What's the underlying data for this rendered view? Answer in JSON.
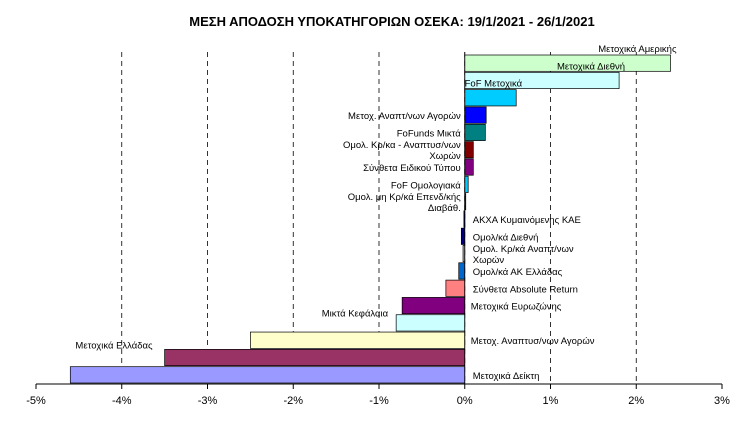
{
  "chart_data": {
    "type": "bar",
    "orientation": "horizontal",
    "title": "ΜΕΣΗ ΑΠΟΔΟΣΗ ΥΠΟΚΑΤΗΓΟΡΙΩΝ  ΟΣΕΚΑ: 19/1/2021  - 26/1/2021",
    "xlabel": "",
    "ylabel": "",
    "xlim": [
      -5,
      3
    ],
    "x_ticks": [
      "-5%",
      "-4%",
      "-3%",
      "-2%",
      "-1%",
      "0%",
      "1%",
      "2%",
      "3%"
    ],
    "grid": "vertical dashed",
    "legend": "none",
    "categories": [
      {
        "label": [
          "Μετοχικά Αμερικής"
        ],
        "value": 2.4,
        "color": "#ccffcc"
      },
      {
        "label": [
          "Μετοχικά Διεθνή"
        ],
        "value": 1.8,
        "color": "#ccffff"
      },
      {
        "label": [
          "FoF Μετοχικά"
        ],
        "value": 0.6,
        "color": "#00ccff"
      },
      {
        "label": [
          "Μετοχ.  Αναπτ/νων Αγορών"
        ],
        "value": 0.25,
        "color": "#0000ff"
      },
      {
        "label": [
          "FoFunds Μικτά"
        ],
        "value": 0.24,
        "color": "#008080"
      },
      {
        "label": [
          "Ομολ. Κρ/κα - Αναπτυσ/νων",
          "Χωρών"
        ],
        "value": 0.1,
        "color": "#800000"
      },
      {
        "label": [
          "Σύνθετα Ειδικού Τύπου"
        ],
        "value": 0.1,
        "color": "#800080"
      },
      {
        "label": [
          "FoF Ομολογιακά"
        ],
        "value": 0.04,
        "color": "#00ccff"
      },
      {
        "label": [
          "Ομολ. μη Κρ/κά Επενδ/κής",
          "Διαβάθ."
        ],
        "value": 0.01,
        "color": "#333399"
      },
      {
        "label": [
          "ΑΚΧΑ Κυμαινόμενης ΚΑΕ"
        ],
        "value": -0.01,
        "color": "#000080"
      },
      {
        "label": [
          "Ομολ/κά Διεθνή"
        ],
        "value": -0.04,
        "color": "#000080"
      },
      {
        "label": [
          "Ομολ. Κρ/κά Αναπτ/νων",
          "Χωρών"
        ],
        "value": -0.02,
        "color": "#c0c0c0"
      },
      {
        "label": [
          "Ομολ/κά ΑΚ Ελλάδας"
        ],
        "value": -0.07,
        "color": "#0066cc"
      },
      {
        "label": [
          "Σύνθετα Absolute Return"
        ],
        "value": -0.22,
        "color": "#ff8080"
      },
      {
        "label": [
          "Μετοχικά Ευρωζώνης"
        ],
        "value": -0.73,
        "color": "#800080"
      },
      {
        "label": [
          "Μικτά Κεφάλαια"
        ],
        "value": -0.8,
        "color": "#ccffff"
      },
      {
        "label": [
          "Μετοχ.  Αναπτυσ/νων Αγορών"
        ],
        "value": -2.5,
        "color": "#ffffcc"
      },
      {
        "label": [
          "Μετοχικά Ελλάδας"
        ],
        "value": -3.5,
        "color": "#993366"
      },
      {
        "label": [
          "Μετοχικά  Δείκτη"
        ],
        "value": -4.6,
        "color": "#9999ff"
      }
    ]
  }
}
